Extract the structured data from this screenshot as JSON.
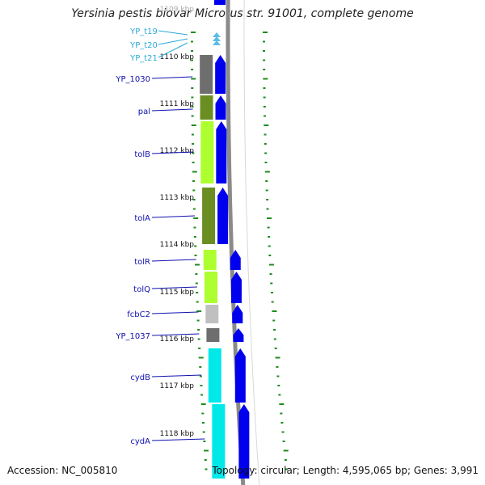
{
  "title": "Yersinia pestis biovar Microtus str. 91001, complete genome",
  "footer": {
    "accession": "Accession: NC_005810",
    "summary": "Topology: circular; Length: 4,595,065 bp; Genes: 3,991"
  },
  "colors": {
    "background": "#ffffff",
    "backbone": "#8a8a8a",
    "ruler_tick": "#1e8c1e",
    "forward_strand": "#0000ee",
    "trna_arrow": "#5bbce8",
    "gene_label": "#1010b0",
    "trna_label": "#2aa8d8",
    "cog_dark_gray": "#6e6e6e",
    "cog_olive": "#6b8e23",
    "cog_yellow_green": "#adff2f",
    "cog_light_gray": "#c0c0c0",
    "cog_cyan": "#00e8e8"
  },
  "ruler_labels": [
    "1109 kbp",
    "1110 kbp",
    "1111 kbp",
    "1112 kbp",
    "1113 kbp",
    "1114 kbp",
    "1115 kbp",
    "1116 kbp",
    "1117 kbp",
    "1118 kbp"
  ],
  "genes": [
    {
      "label": "YP_t19",
      "kind": "trna"
    },
    {
      "label": "YP_t20",
      "kind": "trna"
    },
    {
      "label": "YP_t21",
      "kind": "trna"
    },
    {
      "label": "YP_1030",
      "kind": "gene",
      "cog": "dark_gray"
    },
    {
      "label": "pal",
      "kind": "gene",
      "cog": "olive"
    },
    {
      "label": "tolB",
      "kind": "gene",
      "cog": "yellow_green"
    },
    {
      "label": "tolA",
      "kind": "gene",
      "cog": "olive"
    },
    {
      "label": "tolR",
      "kind": "gene",
      "cog": "yellow_green"
    },
    {
      "label": "tolQ",
      "kind": "gene",
      "cog": "yellow_green"
    },
    {
      "label": "fcbC2",
      "kind": "gene",
      "cog": "light_gray"
    },
    {
      "label": "YP_1037",
      "kind": "gene",
      "cog": "dark_gray"
    },
    {
      "label": "cydB",
      "kind": "gene",
      "cog": "cyan"
    },
    {
      "label": "cydA",
      "kind": "gene",
      "cog": "cyan"
    }
  ]
}
